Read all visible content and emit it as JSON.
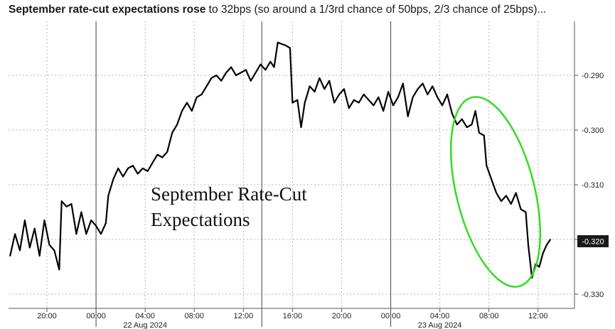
{
  "headline": {
    "bold": "September rate-cut expectations rose",
    "rest": " to 32bps (so around a 1/3rd chance of 50bps, 2/3 chance of 25bps)..."
  },
  "chart_data": {
    "type": "line",
    "title": "September Rate-Cut Expectations",
    "title_lines": [
      "September Rate-Cut",
      "Expectations"
    ],
    "xlabel": "",
    "ylabel": "",
    "ylim": [
      -0.332,
      -0.281
    ],
    "y_ticks": [
      -0.29,
      -0.3,
      -0.31,
      -0.32,
      -0.33
    ],
    "y_tick_labels": [
      "-0.290",
      "-0.300",
      "-0.310",
      "",
      "-0.330"
    ],
    "last_value_label": "-0.320",
    "last_value": -0.32,
    "x_ticks": [
      {
        "hours": 20,
        "label": "20:00"
      },
      {
        "hours": 24,
        "label": "00:00"
      },
      {
        "hours": 28,
        "label": "04:00"
      },
      {
        "hours": 32,
        "label": "08:00"
      },
      {
        "hours": 36,
        "label": "12:00"
      },
      {
        "hours": 40,
        "label": "16:00"
      },
      {
        "hours": 44,
        "label": "20:00"
      },
      {
        "hours": 48,
        "label": "00:00"
      },
      {
        "hours": 52,
        "label": "04:00"
      },
      {
        "hours": 56,
        "label": "08:00"
      },
      {
        "hours": 60,
        "label": "12:00"
      }
    ],
    "date_labels": [
      {
        "hours": 28,
        "label": "22 Aug 2024"
      },
      {
        "hours": 52,
        "label": "23 Aug 2024"
      }
    ],
    "day_dividers": [
      24,
      37.5,
      48
    ],
    "series": [
      {
        "color": "#000000",
        "points": [
          [
            17.0,
            -0.323
          ],
          [
            17.4,
            -0.319
          ],
          [
            17.8,
            -0.322
          ],
          [
            18.2,
            -0.3165
          ],
          [
            18.6,
            -0.3215
          ],
          [
            19.0,
            -0.318
          ],
          [
            19.4,
            -0.323
          ],
          [
            19.8,
            -0.3165
          ],
          [
            20.2,
            -0.321
          ],
          [
            20.6,
            -0.322
          ],
          [
            21.0,
            -0.3255
          ],
          [
            21.2,
            -0.313
          ],
          [
            21.6,
            -0.314
          ],
          [
            22.0,
            -0.3135
          ],
          [
            22.4,
            -0.319
          ],
          [
            22.8,
            -0.315
          ],
          [
            23.2,
            -0.319
          ],
          [
            23.6,
            -0.3165
          ],
          [
            24.0,
            -0.3175
          ],
          [
            24.4,
            -0.319
          ],
          [
            24.8,
            -0.317
          ],
          [
            25.0,
            -0.312
          ],
          [
            25.4,
            -0.309
          ],
          [
            25.8,
            -0.307
          ],
          [
            26.2,
            -0.3085
          ],
          [
            26.6,
            -0.307
          ],
          [
            27.0,
            -0.3065
          ],
          [
            27.4,
            -0.308
          ],
          [
            27.8,
            -0.307
          ],
          [
            28.2,
            -0.3075
          ],
          [
            28.6,
            -0.306
          ],
          [
            29.0,
            -0.3045
          ],
          [
            29.4,
            -0.305
          ],
          [
            29.8,
            -0.304
          ],
          [
            30.2,
            -0.3005
          ],
          [
            30.6,
            -0.299
          ],
          [
            31.0,
            -0.2965
          ],
          [
            31.4,
            -0.295
          ],
          [
            31.8,
            -0.2965
          ],
          [
            32.2,
            -0.294
          ],
          [
            32.6,
            -0.2935
          ],
          [
            33.0,
            -0.292
          ],
          [
            33.4,
            -0.2905
          ],
          [
            33.8,
            -0.29
          ],
          [
            34.2,
            -0.291
          ],
          [
            34.6,
            -0.2895
          ],
          [
            35.0,
            -0.2885
          ],
          [
            35.4,
            -0.29
          ],
          [
            35.8,
            -0.2895
          ],
          [
            36.2,
            -0.289
          ],
          [
            36.6,
            -0.291
          ],
          [
            37.0,
            -0.2895
          ],
          [
            37.4,
            -0.288
          ],
          [
            37.8,
            -0.289
          ],
          [
            38.2,
            -0.2875
          ],
          [
            38.5,
            -0.2885
          ],
          [
            38.8,
            -0.284
          ],
          [
            39.4,
            -0.2845
          ],
          [
            39.8,
            -0.285
          ],
          [
            40.0,
            -0.295
          ],
          [
            40.4,
            -0.2945
          ],
          [
            40.7,
            -0.2995
          ],
          [
            41.0,
            -0.295
          ],
          [
            41.4,
            -0.292
          ],
          [
            41.8,
            -0.293
          ],
          [
            42.2,
            -0.2905
          ],
          [
            42.6,
            -0.2925
          ],
          [
            43.0,
            -0.291
          ],
          [
            43.4,
            -0.295
          ],
          [
            43.8,
            -0.2935
          ],
          [
            44.2,
            -0.2925
          ],
          [
            44.6,
            -0.296
          ],
          [
            45.0,
            -0.2945
          ],
          [
            45.4,
            -0.295
          ],
          [
            45.8,
            -0.2935
          ],
          [
            46.2,
            -0.2945
          ],
          [
            46.6,
            -0.2955
          ],
          [
            47.0,
            -0.294
          ],
          [
            47.4,
            -0.2965
          ],
          [
            47.8,
            -0.293
          ],
          [
            48.2,
            -0.2955
          ],
          [
            48.6,
            -0.294
          ],
          [
            49.0,
            -0.2915
          ],
          [
            49.4,
            -0.2975
          ],
          [
            49.8,
            -0.294
          ],
          [
            50.2,
            -0.2925
          ],
          [
            50.6,
            -0.2915
          ],
          [
            51.0,
            -0.2935
          ],
          [
            51.4,
            -0.292
          ],
          [
            51.8,
            -0.294
          ],
          [
            52.2,
            -0.2955
          ],
          [
            52.6,
            -0.2935
          ],
          [
            53.0,
            -0.297
          ],
          [
            53.4,
            -0.299
          ],
          [
            53.8,
            -0.298
          ],
          [
            54.2,
            -0.2995
          ],
          [
            54.6,
            -0.299
          ],
          [
            54.9,
            -0.2965
          ],
          [
            55.2,
            -0.3005
          ],
          [
            55.6,
            -0.301
          ],
          [
            55.8,
            -0.3065
          ],
          [
            56.2,
            -0.309
          ],
          [
            56.6,
            -0.3115
          ],
          [
            57.0,
            -0.313
          ],
          [
            57.4,
            -0.312
          ],
          [
            57.8,
            -0.3135
          ],
          [
            58.2,
            -0.3115
          ],
          [
            58.6,
            -0.3145
          ],
          [
            59.0,
            -0.315
          ],
          [
            59.2,
            -0.321
          ],
          [
            59.5,
            -0.327
          ],
          [
            59.8,
            -0.3245
          ],
          [
            60.1,
            -0.325
          ],
          [
            60.4,
            -0.3225
          ],
          [
            60.7,
            -0.321
          ],
          [
            61.0,
            -0.32
          ]
        ]
      }
    ],
    "annotation": {
      "shape": "ellipse",
      "color": "#33dd22"
    }
  }
}
